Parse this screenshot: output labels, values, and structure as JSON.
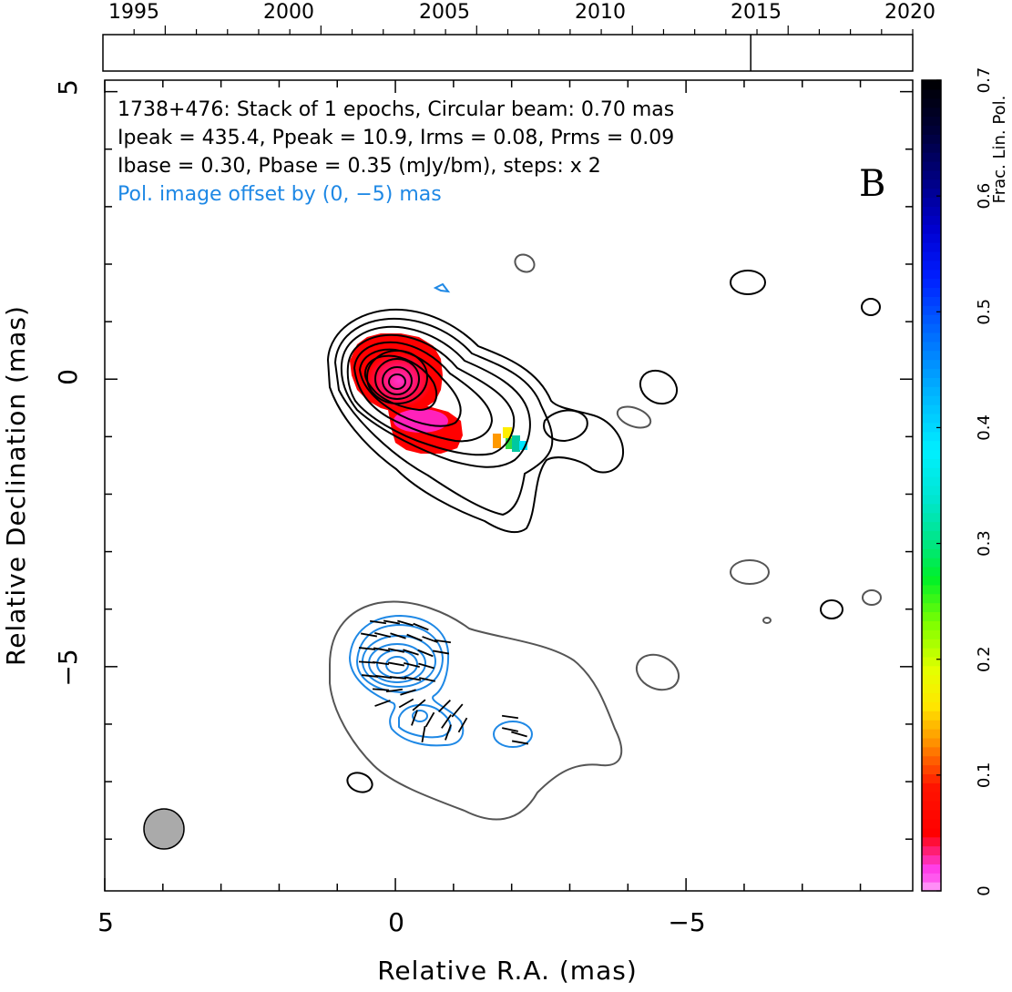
{
  "timeline": {
    "years": [
      "1995",
      "2000",
      "2005",
      "2010",
      "2015",
      "2020"
    ],
    "year_values": [
      1995,
      2000,
      2005,
      2010,
      2015,
      2020
    ],
    "range": [
      1993.0,
      2019.0
    ],
    "epochs": [
      2013.8
    ]
  },
  "header": {
    "line1": "1738+476: Stack of 1 epochs, Circular beam: 0.70 mas",
    "line2": "Ipeak = 435.4, Ppeak = 10.9, Irms = 0.08, Prms = 0.09",
    "line3": "Ibase = 0.30, Pbase = 0.35 (mJy/bm), steps: x 2",
    "line4": "Pol. image offset by (0, −5) mas",
    "panel_letter": "B"
  },
  "chart_data": {
    "type": "heatmap",
    "xlabel": "Relative R.A. (mas)",
    "ylabel": "Relative Declination (mas)",
    "xlim": [
      5.0,
      -8.9
    ],
    "ylim": [
      -8.9,
      5.2
    ],
    "x_ticks": [
      5,
      0,
      -5
    ],
    "x_tick_labels": [
      "5",
      "0",
      "−5"
    ],
    "y_ticks": [
      5,
      0,
      -5
    ],
    "y_tick_labels": [
      "5",
      "0",
      "−5"
    ],
    "beam": {
      "center_ra": 4.0,
      "center_dec": -7.8,
      "diameter_mas": 0.7
    },
    "colorbar": {
      "label": "Frac. Lin. Pol.",
      "range": [
        0,
        0.7
      ],
      "ticks": [
        "0",
        "0.1",
        "0.2",
        "0.3",
        "0.4",
        "0.5",
        "0.6",
        "0.7"
      ],
      "tick_values": [
        0,
        0.1,
        0.2,
        0.3,
        0.4,
        0.5,
        0.6,
        0.7
      ]
    },
    "stokes_i_peak_mJy_per_beam": 435.4,
    "pol_peak_mJy_per_beam": 10.9,
    "contour_base_I": 0.3,
    "contour_base_P": 0.35,
    "contour_step_factor": 2,
    "pol_offset_mas": [
      0,
      -5
    ],
    "colors": {
      "stokes_i": "#000000",
      "polarization": "#1e88e5",
      "lowest_contour": "#555555",
      "beam_fill": "#aaaaaa"
    }
  }
}
